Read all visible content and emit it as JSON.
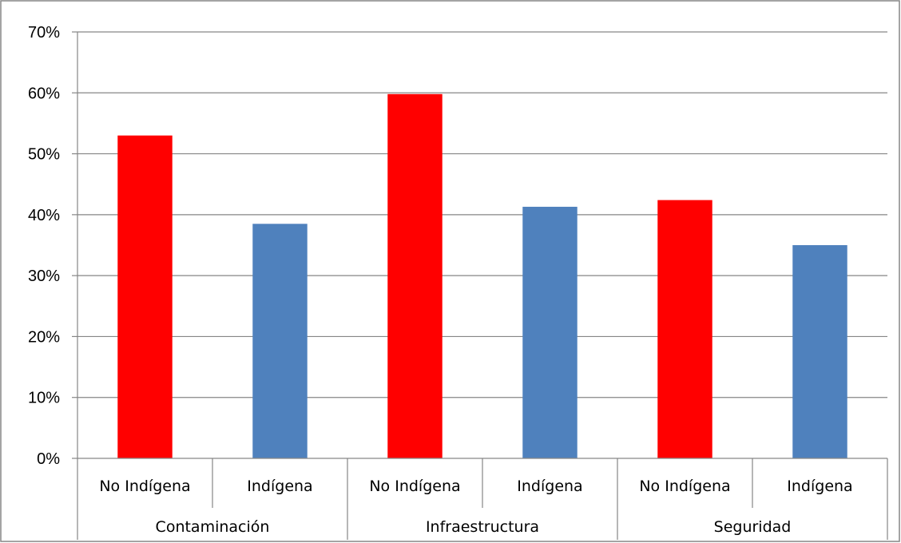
{
  "chart_data": {
    "type": "bar",
    "groups": [
      {
        "label": "Contaminación",
        "categories": [
          "No Indígena",
          "Indígena"
        ],
        "values": [
          53,
          38.5
        ]
      },
      {
        "label": "Infraestructura",
        "categories": [
          "No Indígena",
          "Indígena"
        ],
        "values": [
          59.8,
          41.3
        ]
      },
      {
        "label": "Seguridad",
        "categories": [
          "No Indígena",
          "Indígena"
        ],
        "values": [
          42.4,
          35
        ]
      }
    ],
    "y_ticks": [
      "0%",
      "10%",
      "20%",
      "30%",
      "40%",
      "50%",
      "60%",
      "70%"
    ],
    "ylim": [
      0,
      70
    ],
    "y_unit": "%",
    "grid": true,
    "legend": "none",
    "colors": {
      "No Indígena": "#ff0000",
      "Indígena": "#4f81bd",
      "gridline": "#868686",
      "border": "#868686"
    }
  }
}
